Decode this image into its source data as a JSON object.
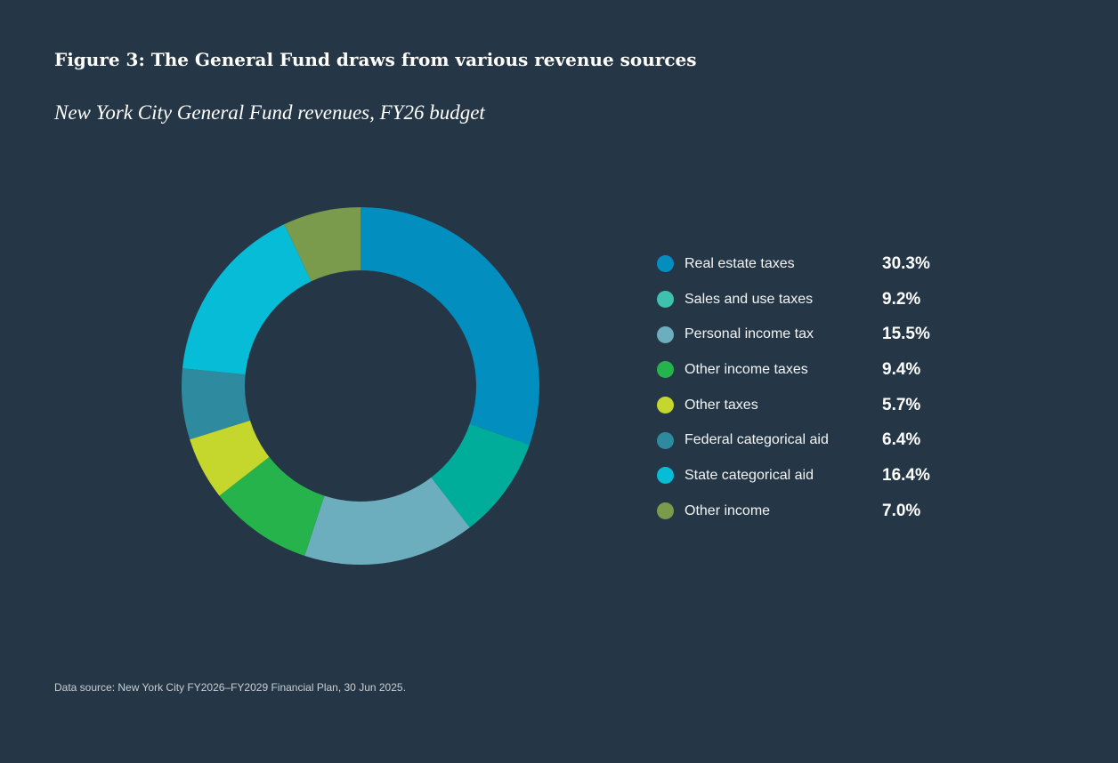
{
  "title": "Figure 3: The General Fund draws from various revenue sources",
  "subtitle": "New York City General Fund revenues, FY26 budget",
  "source": "Data source: New York City FY2026–FY2029 Financial Plan, 30 Jun 2025.",
  "chart_data": {
    "type": "pie",
    "donut": true,
    "title": "Figure 3: The General Fund draws from various revenue sources",
    "subtitle": "New York City General Fund revenues, FY26 budget",
    "legend_position": "right",
    "categories": [
      "Real estate taxes",
      "Sales and use taxes",
      "Personal income tax",
      "Other income taxes",
      "Other taxes",
      "Federal categorical aid",
      "State categorical aid",
      "Other income"
    ],
    "values": [
      30.3,
      9.2,
      15.5,
      9.4,
      5.7,
      6.4,
      16.4,
      7.0
    ],
    "labels": [
      "30.3%",
      "9.2%",
      "15.5%",
      "9.4%",
      "5.7%",
      "6.4%",
      "16.4%",
      "7.0%"
    ],
    "colors": [
      "#028fc0",
      "#00ad9a",
      "#6caebe",
      "#27b34b",
      "#c5d72d",
      "#2e8b9f",
      "#07bcd6",
      "#799b4b"
    ],
    "legend_colors": [
      "#028fc0",
      "#3fc1b0",
      "#6caebe",
      "#27b34b",
      "#c5d72d",
      "#2e8b9f",
      "#07bcd6",
      "#799b4b"
    ]
  }
}
